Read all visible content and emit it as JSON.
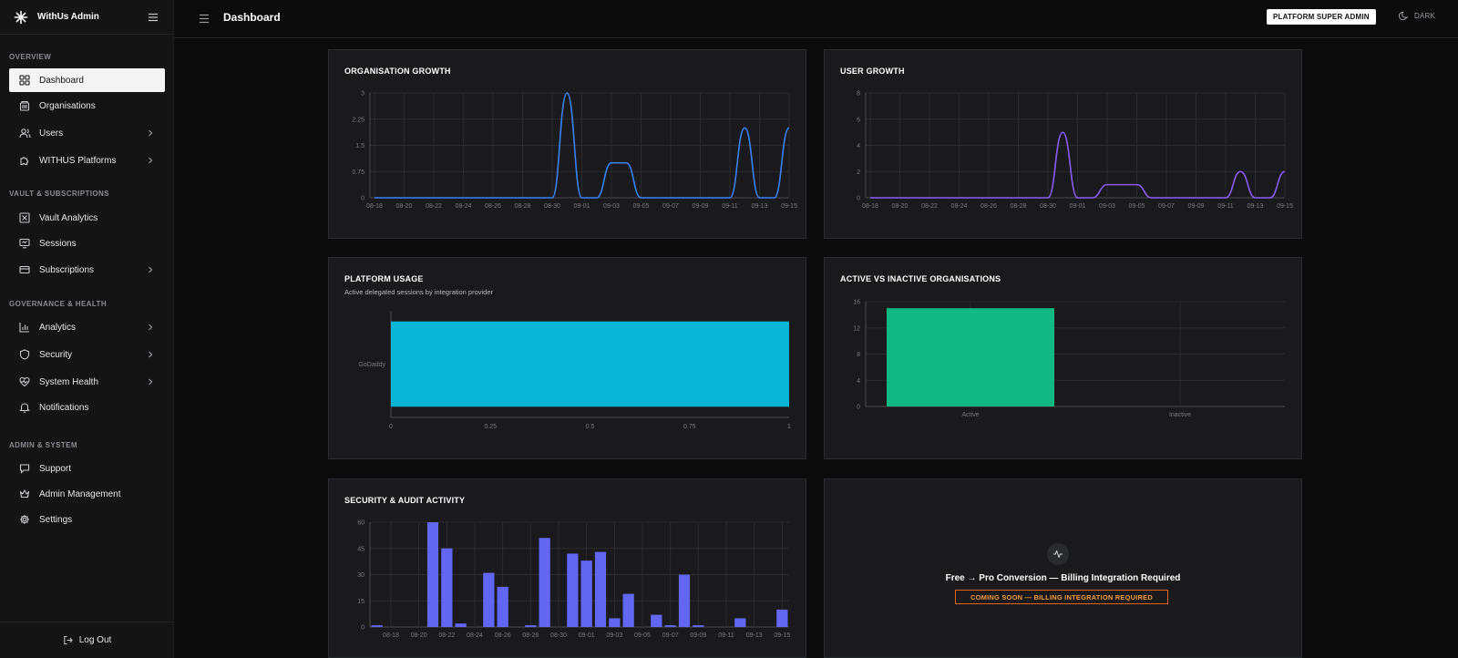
{
  "app": {
    "brand_name": "WithUs Admin",
    "page_title": "Dashboard",
    "role_badge": "PLATFORM SUPER ADMIN",
    "theme_label": "DARK"
  },
  "sidebar": {
    "sections": [
      {
        "label": "OVERVIEW"
      },
      {
        "label": "VAULT & SUBSCRIPTIONS"
      },
      {
        "label": "GOVERNANCE & HEALTH"
      },
      {
        "label": "ADMIN & SYSTEM"
      }
    ],
    "items": [
      {
        "label": "Dashboard",
        "icon": "grid-icon",
        "active": true
      },
      {
        "label": "Organisations",
        "icon": "building-icon"
      },
      {
        "label": "Users",
        "icon": "users-icon",
        "has_children": true
      },
      {
        "label": "WITHUS Platforms",
        "icon": "puzzle-icon",
        "has_children": true
      },
      {
        "label": "Vault Analytics",
        "icon": "vault-icon"
      },
      {
        "label": "Sessions",
        "icon": "monitor-icon"
      },
      {
        "label": "Subscriptions",
        "icon": "card-icon",
        "has_children": true
      },
      {
        "label": "Analytics",
        "icon": "bar-chart-icon",
        "has_children": true
      },
      {
        "label": "Security",
        "icon": "shield-icon",
        "has_children": true
      },
      {
        "label": "System Health",
        "icon": "heart-pulse-icon",
        "has_children": true
      },
      {
        "label": "Notifications",
        "icon": "bell-icon"
      },
      {
        "label": "Support",
        "icon": "chat-icon"
      },
      {
        "label": "Admin Management",
        "icon": "crown-icon"
      },
      {
        "label": "Settings",
        "icon": "gear-icon"
      }
    ],
    "logout_label": "Log Out"
  },
  "cards": {
    "org_growth_title": "ORGANISATION GROWTH",
    "user_growth_title": "USER GROWTH",
    "platform_usage_title": "PLATFORM USAGE",
    "platform_usage_subtitle": "Active delegated sessions by integration provider",
    "active_inactive_title": "ACTIVE VS INACTIVE ORGANISATIONS",
    "security_title": "SECURITY & AUDIT ACTIVITY",
    "conversion_title": "Free → Pro Conversion — Billing Integration Required",
    "conversion_badge": "COMING SOON — BILLING INTEGRATION REQUIRED"
  },
  "colors": {
    "org_line": "#3b82f6",
    "user_line": "#8b5cf6",
    "platform_bar": "#06b6d4",
    "active_bar": "#10b981",
    "security_bar": "#6366f1",
    "coming_soon": "#e0651b"
  },
  "chart_data": [
    {
      "type": "line",
      "title": "ORGANISATION GROWTH",
      "x": [
        "08-18",
        "08-19",
        "08-20",
        "08-21",
        "08-22",
        "08-23",
        "08-24",
        "08-25",
        "08-26",
        "08-27",
        "08-28",
        "08-29",
        "08-30",
        "08-31",
        "09-01",
        "09-02",
        "09-03",
        "09-04",
        "09-05",
        "09-06",
        "09-07",
        "09-08",
        "09-09",
        "09-10",
        "09-11",
        "09-12",
        "09-13",
        "09-14",
        "09-15"
      ],
      "x_tick_labels": [
        "08-18",
        "08-20",
        "08-22",
        "08-24",
        "08-26",
        "08-28",
        "08-30",
        "09-01",
        "09-03",
        "09-05",
        "09-07",
        "09-09",
        "09-11",
        "09-13",
        "09-15"
      ],
      "series": [
        {
          "values": [
            0,
            0,
            0,
            0,
            0,
            0,
            0,
            0,
            0,
            0,
            0,
            0,
            0,
            3,
            0,
            0,
            1,
            1,
            0,
            0,
            0,
            0,
            0,
            0,
            0,
            2,
            0,
            0,
            2
          ]
        }
      ],
      "y_ticks": [
        "0",
        "0.75",
        "1.5",
        "2.25",
        "3"
      ],
      "ylim": [
        0,
        3
      ],
      "grid": true
    },
    {
      "type": "line",
      "title": "USER GROWTH",
      "x": [
        "08-18",
        "08-19",
        "08-20",
        "08-21",
        "08-22",
        "08-23",
        "08-24",
        "08-25",
        "08-26",
        "08-27",
        "08-28",
        "08-29",
        "08-30",
        "08-31",
        "09-01",
        "09-02",
        "09-03",
        "09-04",
        "09-05",
        "09-06",
        "09-07",
        "09-08",
        "09-09",
        "09-10",
        "09-11",
        "09-12",
        "09-13",
        "09-14",
        "09-15"
      ],
      "x_tick_labels": [
        "08-18",
        "08-20",
        "08-22",
        "08-24",
        "08-26",
        "08-28",
        "08-30",
        "09-01",
        "09-03",
        "09-05",
        "09-07",
        "09-09",
        "09-11",
        "09-13",
        "09-15"
      ],
      "series": [
        {
          "values": [
            0,
            0,
            0,
            0,
            0,
            0,
            0,
            0,
            0,
            0,
            0,
            0,
            0,
            5,
            0,
            0,
            1,
            1,
            1,
            0,
            0,
            0,
            0,
            0,
            0,
            2,
            0,
            0,
            2
          ]
        }
      ],
      "y_ticks": [
        "0",
        "2",
        "4",
        "6",
        "8"
      ],
      "ylim": [
        0,
        8
      ],
      "grid": true
    },
    {
      "type": "bar",
      "orientation": "horizontal",
      "title": "PLATFORM USAGE",
      "subtitle": "Active delegated sessions by integration provider",
      "categories": [
        "GoDaddy"
      ],
      "values": [
        1
      ],
      "x_ticks": [
        "0",
        "0.25",
        "0.5",
        "0.75",
        "1"
      ],
      "xlim": [
        0,
        1
      ]
    },
    {
      "type": "bar",
      "title": "ACTIVE VS INACTIVE ORGANISATIONS",
      "categories": [
        "Active",
        "Inactive"
      ],
      "values": [
        15,
        0
      ],
      "y_ticks": [
        "0",
        "4",
        "8",
        "12",
        "16"
      ],
      "ylim": [
        0,
        16
      ],
      "grid": true
    },
    {
      "type": "bar",
      "title": "SECURITY & AUDIT ACTIVITY",
      "categories": [
        "08-17",
        "08-18",
        "08-19",
        "08-20",
        "08-21",
        "08-22",
        "08-23",
        "08-24",
        "08-25",
        "08-26",
        "08-27",
        "08-28",
        "08-29",
        "08-30",
        "08-31",
        "09-01",
        "09-02",
        "09-03",
        "09-04",
        "09-05",
        "09-06",
        "09-07",
        "09-08",
        "09-09",
        "09-10",
        "09-11",
        "09-12",
        "09-13",
        "09-14",
        "09-15"
      ],
      "x_tick_labels": [
        "08-18",
        "08-20",
        "08-22",
        "08-24",
        "08-26",
        "08-28",
        "08-30",
        "09-01",
        "09-03",
        "09-05",
        "09-07",
        "09-09",
        "09-11",
        "09-13",
        "09-15"
      ],
      "values": [
        1,
        0,
        0,
        0,
        60,
        45,
        2,
        0,
        31,
        23,
        0,
        1,
        51,
        0,
        42,
        38,
        43,
        5,
        19,
        0,
        7,
        1,
        30,
        1,
        0,
        0,
        5,
        0,
        0,
        10
      ],
      "y_ticks": [
        "0",
        "15",
        "30",
        "45",
        "60"
      ],
      "ylim": [
        0,
        60
      ],
      "grid": true
    }
  ]
}
